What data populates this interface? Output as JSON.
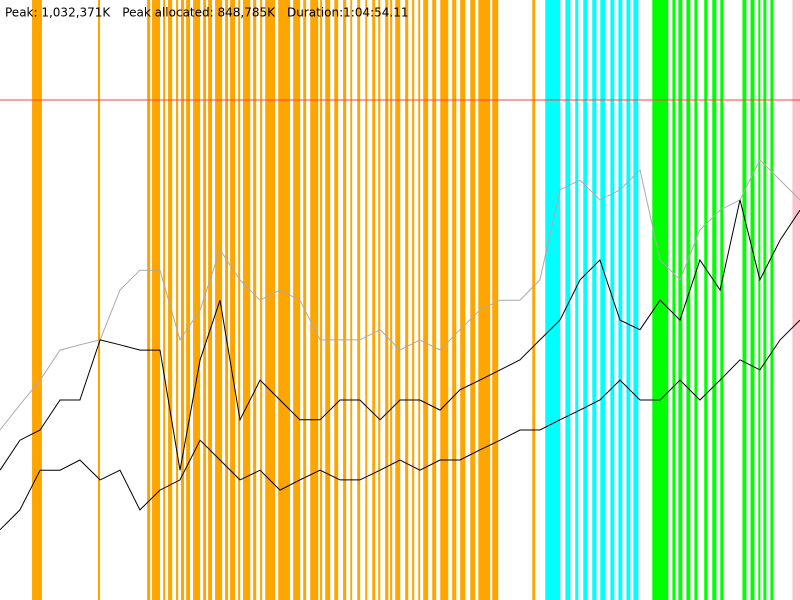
{
  "chart_data": {
    "type": "line",
    "header": [
      "Peak: 1,032,371K",
      "Peak allocated: 848,785K",
      "Duration:1:04:54.11"
    ],
    "xlim": [
      0,
      3894
    ],
    "ylim": [
      0,
      1238845
    ],
    "peak_line": 1032371,
    "peak_color": "#ff4040",
    "event_groups": [
      {
        "color": "#ffa500",
        "bands": [
          [
            156,
            204
          ],
          [
            477,
            487
          ],
          [
            716,
            731
          ],
          [
            740,
            779
          ],
          [
            794,
            804
          ],
          [
            818,
            838
          ],
          [
            857,
            867
          ],
          [
            881,
            896
          ],
          [
            906,
            925
          ],
          [
            940,
            974
          ],
          [
            989,
            1003
          ],
          [
            1013,
            1032
          ],
          [
            1047,
            1081
          ],
          [
            1096,
            1110
          ],
          [
            1120,
            1144
          ],
          [
            1159,
            1169
          ],
          [
            1183,
            1218
          ],
          [
            1232,
            1247
          ],
          [
            1266,
            1276
          ],
          [
            1291,
            1339
          ],
          [
            1354,
            1412
          ],
          [
            1427,
            1461
          ],
          [
            1476,
            1490
          ],
          [
            1510,
            1549
          ],
          [
            1558,
            1568
          ],
          [
            1583,
            1607
          ],
          [
            1627,
            1646
          ],
          [
            1670,
            1685
          ],
          [
            1705,
            1714
          ],
          [
            1739,
            1753
          ],
          [
            1778,
            1787
          ],
          [
            1812,
            1826
          ],
          [
            1841,
            1851
          ],
          [
            1875,
            1890
          ],
          [
            1899,
            1909
          ],
          [
            1924,
            1948
          ],
          [
            1972,
            1987
          ],
          [
            2006,
            2016
          ],
          [
            2036,
            2045
          ],
          [
            2060,
            2084
          ],
          [
            2104,
            2123
          ],
          [
            2143,
            2182
          ],
          [
            2201,
            2221
          ],
          [
            2240,
            2265
          ],
          [
            2289,
            2313
          ],
          [
            2328,
            2386
          ],
          [
            2396,
            2425
          ],
          [
            2591,
            2605
          ]
        ]
      },
      {
        "color": "#00ffff",
        "bands": [
          [
            2654,
            2727
          ],
          [
            2752,
            2776
          ],
          [
            2800,
            2815
          ],
          [
            2839,
            2859
          ],
          [
            2883,
            2903
          ],
          [
            2922,
            2946
          ],
          [
            2971,
            2990
          ],
          [
            3010,
            3029
          ],
          [
            3049,
            3068
          ],
          [
            3083,
            3107
          ]
        ]
      },
      {
        "color": "#00ff00",
        "bands": [
          [
            3175,
            3253
          ],
          [
            3273,
            3287
          ],
          [
            3302,
            3321
          ],
          [
            3341,
            3360
          ],
          [
            3380,
            3394
          ],
          [
            3428,
            3443
          ],
          [
            3467,
            3487
          ],
          [
            3506,
            3521
          ],
          [
            3614,
            3633
          ],
          [
            3653,
            3672
          ],
          [
            3691,
            3701
          ],
          [
            3716,
            3730
          ],
          [
            3750,
            3765
          ]
        ]
      },
      {
        "color": "#ffc0cb",
        "bands": [
          [
            3857,
            3894
          ]
        ]
      }
    ],
    "x": [
      0,
      97,
      195,
      292,
      389,
      487,
      584,
      681,
      779,
      876,
      974,
      1071,
      1168,
      1266,
      1363,
      1460,
      1558,
      1655,
      1752,
      1850,
      1947,
      2044,
      2142,
      2239,
      2336,
      2434,
      2531,
      2628,
      2726,
      2823,
      2920,
      3018,
      3115,
      3213,
      3310,
      3407,
      3505,
      3602,
      3699,
      3797,
      3894
    ],
    "series": [
      {
        "color": "#aaaaaa",
        "values": [
          351000,
          403000,
          454000,
          516000,
          527000,
          537000,
          640000,
          681000,
          681000,
          537000,
          599000,
          723000,
          661000,
          619000,
          640000,
          619000,
          537000,
          537000,
          537000,
          558000,
          516000,
          537000,
          516000,
          558000,
          599000,
          619000,
          619000,
          661000,
          847000,
          867000,
          826000,
          847000,
          888000,
          702000,
          661000,
          764000,
          805000,
          826000,
          909000,
          867000,
          826000
        ]
      },
      {
        "color": "#000000",
        "values": [
          268000,
          330000,
          351000,
          413000,
          413000,
          537000,
          527000,
          516000,
          516000,
          268000,
          496000,
          619000,
          372000,
          454000,
          413000,
          372000,
          372000,
          413000,
          413000,
          372000,
          413000,
          413000,
          392000,
          434000,
          454000,
          475000,
          496000,
          537000,
          578000,
          661000,
          702000,
          578000,
          558000,
          619000,
          578000,
          702000,
          640000,
          826000,
          661000,
          743000,
          805000
        ]
      },
      {
        "color": "#000000",
        "values": [
          145000,
          186000,
          268000,
          268000,
          289000,
          248000,
          268000,
          186000,
          227000,
          248000,
          330000,
          289000,
          248000,
          268000,
          227000,
          248000,
          268000,
          248000,
          248000,
          268000,
          289000,
          268000,
          289000,
          289000,
          310000,
          330000,
          351000,
          351000,
          372000,
          392000,
          413000,
          454000,
          413000,
          413000,
          454000,
          413000,
          454000,
          496000,
          475000,
          537000,
          578000
        ]
      }
    ]
  }
}
